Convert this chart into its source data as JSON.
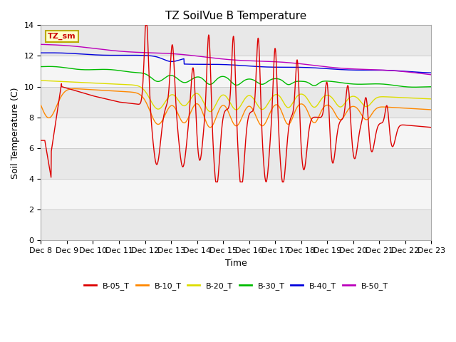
{
  "title": "TZ SoilVue B Temperature",
  "xlabel": "Time",
  "ylabel": "Soil Temperature (C)",
  "ylim": [
    0,
    14
  ],
  "yticks": [
    0,
    2,
    4,
    6,
    8,
    10,
    12,
    14
  ],
  "x_labels": [
    "Dec 8",
    "Dec 9",
    "Dec 10",
    "Dec 11",
    "Dec 12",
    "Dec 13",
    "Dec 14",
    "Dec 15",
    "Dec 16",
    "Dec 17",
    "Dec 18",
    "Dec 19",
    "Dec 20",
    "Dec 21",
    "Dec 22",
    "Dec 23"
  ],
  "colors": {
    "B-05_T": "#dd0000",
    "B-10_T": "#ff8800",
    "B-20_T": "#dddd00",
    "B-30_T": "#00bb00",
    "B-40_T": "#0000dd",
    "B-50_T": "#bb00bb"
  },
  "legend_label": "TZ_sm",
  "legend_box_color": "#ffffcc",
  "legend_box_edge": "#bbaa00",
  "background_color": "#ffffff",
  "band_color": "#e8e8e8",
  "title_fontsize": 11,
  "axis_fontsize": 9,
  "tick_fontsize": 8
}
